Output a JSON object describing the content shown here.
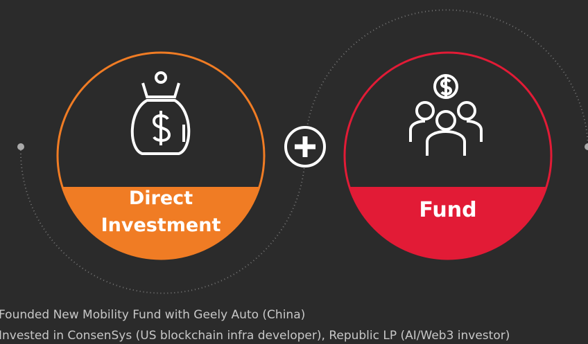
{
  "left_label_line1": "Direct",
  "left_label_line2": "Investment",
  "right_label": "Fund",
  "bullets": [
    "Founded New Mobility Fund with Geely Auto (China)",
    "Invested in ConsenSys (US blockchain infra developer), Republic LP (AI/Web3 investor)"
  ]
}
